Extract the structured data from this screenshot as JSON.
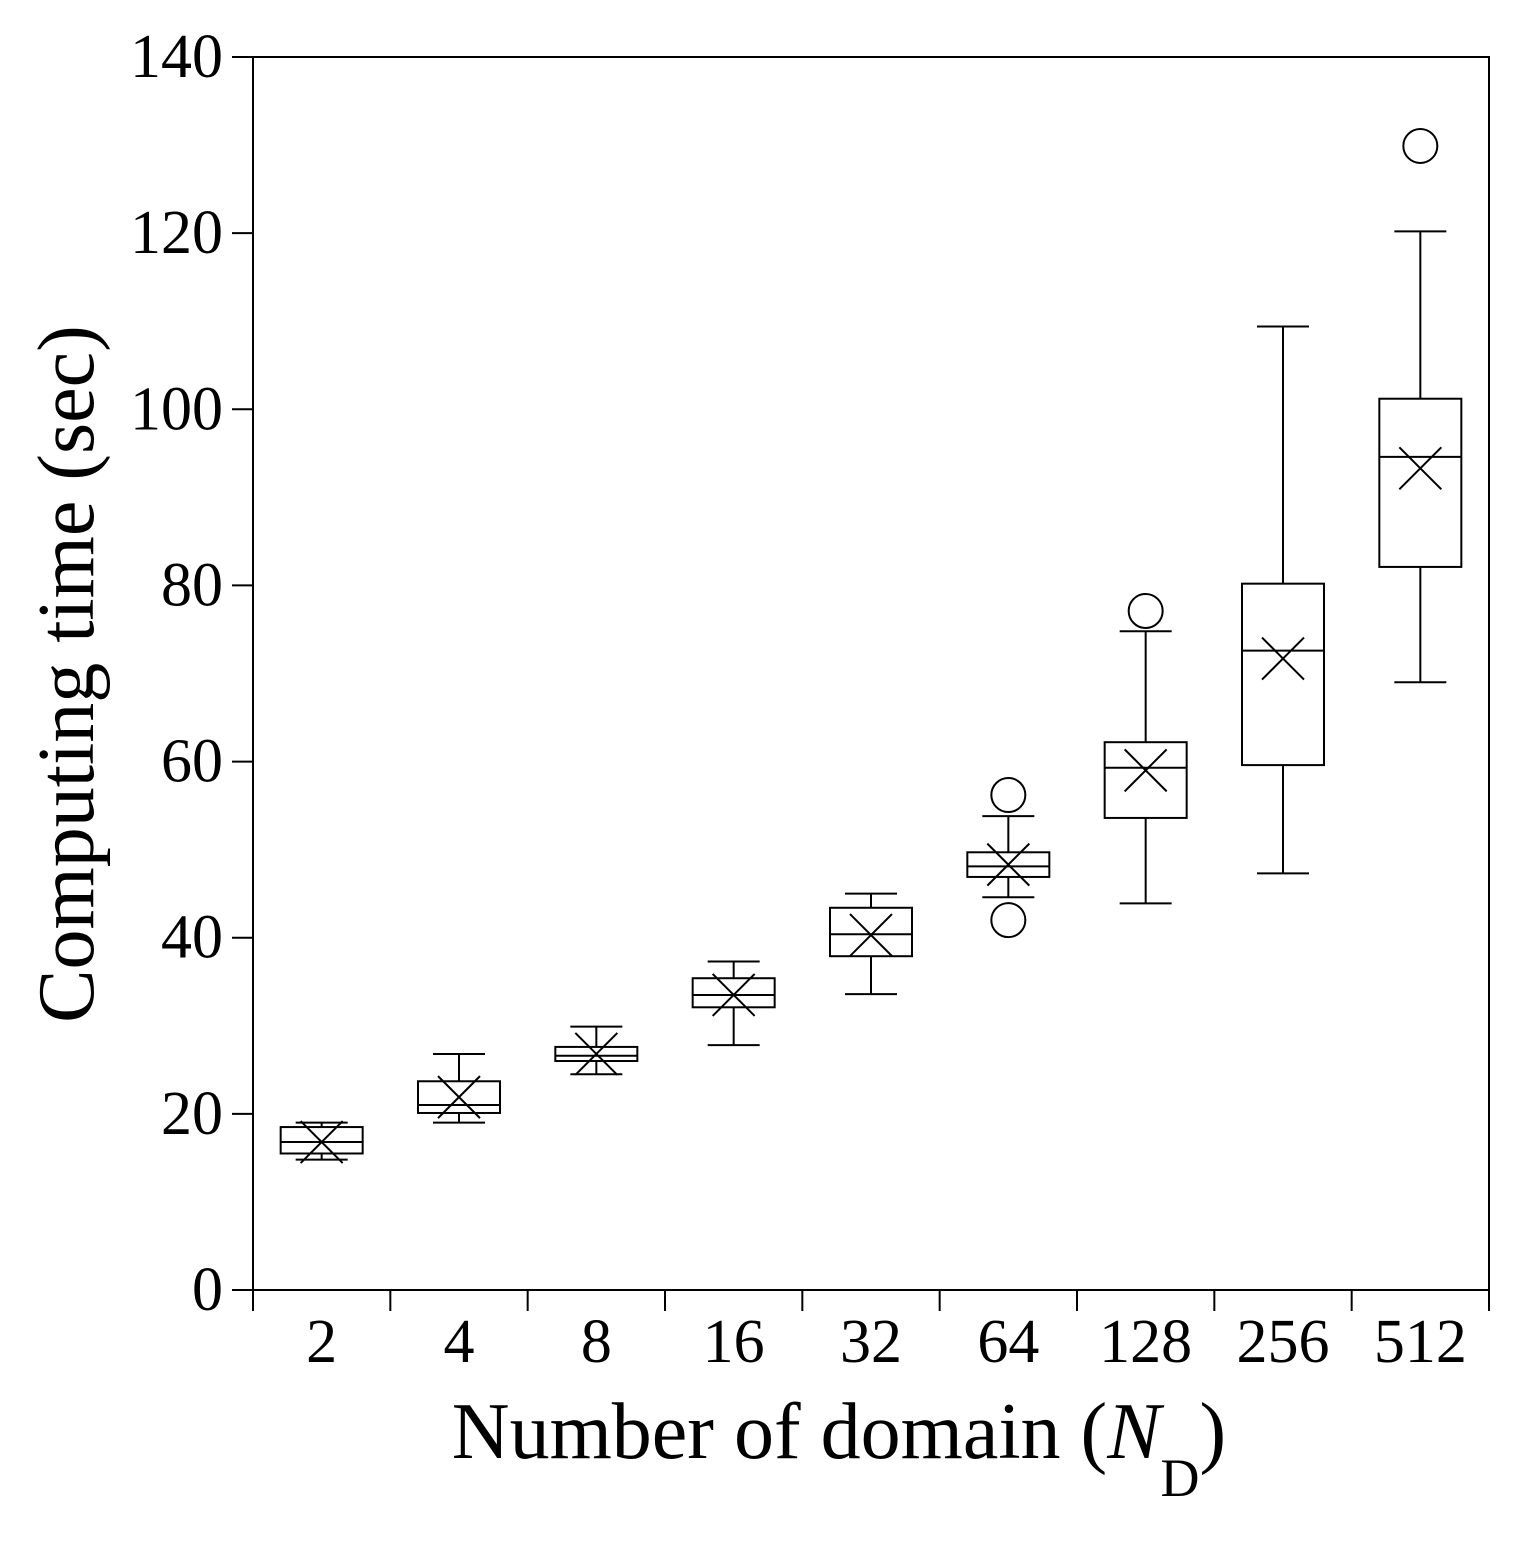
{
  "chart_data": {
    "type": "box",
    "xlabel": {
      "main": "Number of domain (",
      "var": "N",
      "sub": "D",
      "close": ")"
    },
    "ylabel": "Computing time (sec)",
    "categories": [
      "2",
      "4",
      "8",
      "16",
      "32",
      "64",
      "128",
      "256",
      "512"
    ],
    "ylim": [
      0,
      140
    ],
    "yticks": [
      0,
      20,
      40,
      60,
      80,
      100,
      120,
      140
    ],
    "grid": false,
    "boxes": [
      {
        "category": "2",
        "whisker_low": 14.8,
        "q1": 15.5,
        "median": 16.8,
        "q3": 18.5,
        "whisker_high": 19.0,
        "mean": 16.8,
        "outliers": []
      },
      {
        "category": "4",
        "whisker_low": 19.0,
        "q1": 20.1,
        "median": 21.0,
        "q3": 23.7,
        "whisker_high": 26.8,
        "mean": 21.9,
        "outliers": []
      },
      {
        "category": "8",
        "whisker_low": 24.5,
        "q1": 26.0,
        "median": 26.6,
        "q3": 27.6,
        "whisker_high": 29.9,
        "mean": 26.8,
        "outliers": []
      },
      {
        "category": "16",
        "whisker_low": 27.8,
        "q1": 32.1,
        "median": 33.5,
        "q3": 35.4,
        "whisker_high": 37.3,
        "mean": 33.5,
        "outliers": []
      },
      {
        "category": "32",
        "whisker_low": 33.6,
        "q1": 37.9,
        "median": 40.4,
        "q3": 43.4,
        "whisker_high": 45.0,
        "mean": 40.3,
        "outliers": []
      },
      {
        "category": "64",
        "whisker_low": 44.6,
        "q1": 46.9,
        "median": 48.1,
        "q3": 49.7,
        "whisker_high": 53.8,
        "mean": 48.3,
        "outliers": [
          56.2,
          42.0
        ]
      },
      {
        "category": "128",
        "whisker_low": 43.9,
        "q1": 53.6,
        "median": 59.3,
        "q3": 62.2,
        "whisker_high": 74.8,
        "mean": 59.0,
        "outliers": [
          77.1
        ]
      },
      {
        "category": "256",
        "whisker_low": 47.3,
        "q1": 59.6,
        "median": 72.6,
        "q3": 80.2,
        "whisker_high": 109.4,
        "mean": 71.7,
        "outliers": []
      },
      {
        "category": "512",
        "whisker_low": 69.0,
        "q1": 82.1,
        "median": 94.6,
        "q3": 101.2,
        "whisker_high": 120.2,
        "mean": 93.3,
        "outliers": [
          129.9
        ]
      }
    ]
  }
}
